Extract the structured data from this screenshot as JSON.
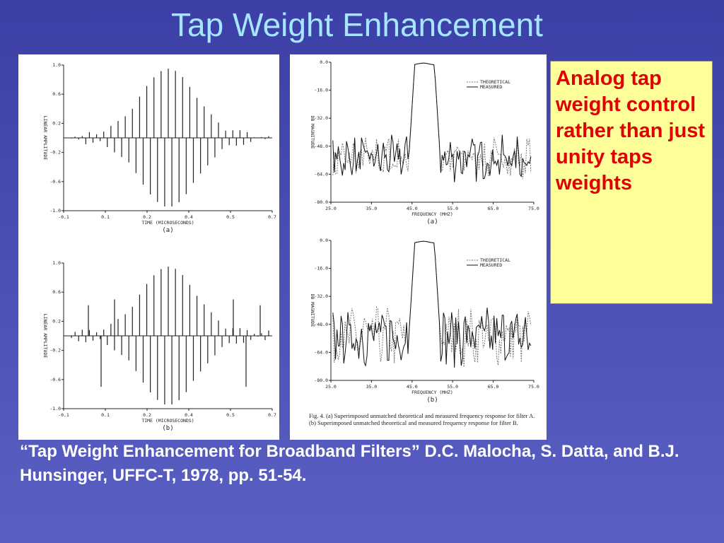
{
  "title": "Tap Weight Enhancement",
  "callout": "Analog tap weight control rather than just unity taps weights",
  "citation": "“Tap Weight Enhancement for Broadband Filters” D.C. Malocha, S. Datta, and B.J. Hunsinger, UFFC-T, 1978, pp. 51-54.",
  "figures": {
    "impulse": {
      "yticks": [
        "1.0",
        "0.6",
        "0.2",
        "-0.2",
        "-0.6",
        "-1.0"
      ],
      "xticks": [
        "-0.1",
        "0.1",
        "0.2",
        "0.4",
        "0.5",
        "0.7"
      ],
      "xlabel": "TIME (MICROSECONDS)",
      "ylabel": "LINEAR AMPLITUDE",
      "panels": [
        "(a)",
        "(b)"
      ]
    },
    "frequency": {
      "yticks": [
        "0.0",
        "-16.0",
        "-32.0",
        "-48.0",
        "-64.0",
        "-80.0"
      ],
      "xticks": [
        "25.0",
        "35.0",
        "45.0",
        "55.0",
        "65.0",
        "75.0"
      ],
      "xlabel": "FREQUENCY (MHZ)",
      "ylabel": "DB MAGNITUDE",
      "legend": [
        "THEORETICAL",
        "MEASURED"
      ],
      "panels": [
        "(a)",
        "(b)"
      ],
      "caption": "Fig. 4. (a) Superimposed unmatched theoretical and measured frequency response for filter A. (b) Superimposed unmatched theoretical and measured frequency response for filter B."
    }
  }
}
